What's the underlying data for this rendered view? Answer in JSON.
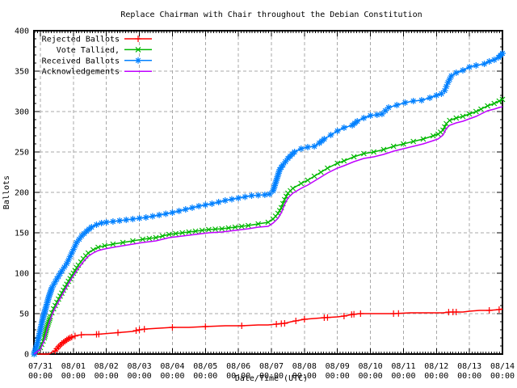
{
  "chart_data": {
    "type": "line",
    "title": "Replace Chairman with Chair throughout the Debian Constitution",
    "xlabel": "Date/Time (UTC)",
    "ylabel": "Ballots",
    "ylim": [
      0,
      400
    ],
    "ytick_step": 50,
    "y_minor_step": 10,
    "x_minor_per_day": 12,
    "grid": true,
    "legend_position": "top-left",
    "background_color": "#ffffff",
    "grid_color": "#a8a8a8",
    "axis_color": "#000000",
    "x_unit": "days since 07/31 00:00 UTC",
    "x_ticks": [
      {
        "date": "07/31",
        "time": "00:00"
      },
      {
        "date": "08/01",
        "time": "00:00"
      },
      {
        "date": "08/02",
        "time": "00:00"
      },
      {
        "date": "08/03",
        "time": "00:00"
      },
      {
        "date": "08/04",
        "time": "00:00"
      },
      {
        "date": "08/05",
        "time": "00:00"
      },
      {
        "date": "08/06",
        "time": "00:00"
      },
      {
        "date": "08/07",
        "time": "00:00"
      },
      {
        "date": "08/08",
        "time": "00:00"
      },
      {
        "date": "08/09",
        "time": "00:00"
      },
      {
        "date": "08/10",
        "time": "00:00"
      },
      {
        "date": "08/11",
        "time": "00:00"
      },
      {
        "date": "08/12",
        "time": "00:00"
      },
      {
        "date": "08/13",
        "time": "00:00"
      },
      {
        "date": "08/14",
        "time": "00:00"
      }
    ],
    "series": [
      {
        "name": "Rejected Ballots",
        "color": "#ff0000",
        "marker": "plus",
        "points": [
          [
            -0.19,
            0
          ],
          [
            0.25,
            0
          ],
          [
            0.45,
            4
          ],
          [
            0.55,
            9
          ],
          [
            0.65,
            13
          ],
          [
            0.75,
            16
          ],
          [
            0.85,
            19
          ],
          [
            0.95,
            21
          ],
          [
            1.1,
            23
          ],
          [
            1.3,
            24
          ],
          [
            1.6,
            24
          ],
          [
            1.9,
            25
          ],
          [
            2.2,
            26
          ],
          [
            2.5,
            27
          ],
          [
            2.8,
            28
          ],
          [
            3.0,
            30
          ],
          [
            3.2,
            31
          ],
          [
            3.6,
            32
          ],
          [
            4.0,
            33
          ],
          [
            4.5,
            33
          ],
          [
            5.0,
            34
          ],
          [
            5.6,
            35
          ],
          [
            6.1,
            35
          ],
          [
            6.6,
            36
          ],
          [
            6.9,
            36
          ],
          [
            7.15,
            37
          ],
          [
            7.4,
            38
          ],
          [
            7.6,
            40
          ],
          [
            8.0,
            43
          ],
          [
            8.3,
            44
          ],
          [
            8.6,
            45
          ],
          [
            9.0,
            46
          ],
          [
            9.2,
            47
          ],
          [
            9.45,
            49
          ],
          [
            9.7,
            50
          ],
          [
            10.2,
            50
          ],
          [
            10.7,
            50
          ],
          [
            11.2,
            51
          ],
          [
            11.7,
            51
          ],
          [
            12.2,
            51
          ],
          [
            12.4,
            52
          ],
          [
            12.8,
            52
          ],
          [
            13.0,
            53
          ],
          [
            13.3,
            54
          ],
          [
            13.6,
            54
          ],
          [
            13.9,
            55
          ],
          [
            14.0,
            56
          ]
        ],
        "marker_days": [
          0.45,
          0.5,
          0.55,
          0.6,
          0.65,
          0.7,
          0.75,
          0.8,
          0.85,
          0.9,
          0.95,
          1.05,
          1.24,
          1.7,
          1.77,
          2.35,
          2.9,
          3.0,
          3.15,
          4.0,
          5.0,
          6.1,
          7.15,
          7.3,
          7.4,
          7.74,
          8.0,
          8.6,
          8.7,
          9.2,
          9.43,
          9.5,
          9.7,
          10.7,
          10.85,
          12.37,
          12.5,
          12.6,
          13.6,
          13.9
        ]
      },
      {
        "name": "Vote Tallied,",
        "color": "#00b800",
        "marker": "cross",
        "points": [
          [
            -0.19,
            0
          ],
          [
            0.0,
            8
          ],
          [
            0.12,
            20
          ],
          [
            0.2,
            33
          ],
          [
            0.3,
            46
          ],
          [
            0.4,
            56
          ],
          [
            0.55,
            68
          ],
          [
            0.7,
            79
          ],
          [
            0.85,
            90
          ],
          [
            1.0,
            100
          ],
          [
            1.15,
            110
          ],
          [
            1.3,
            118
          ],
          [
            1.45,
            125
          ],
          [
            1.6,
            129
          ],
          [
            1.75,
            132
          ],
          [
            1.95,
            134
          ],
          [
            2.2,
            136
          ],
          [
            2.5,
            138
          ],
          [
            2.8,
            140
          ],
          [
            3.1,
            142
          ],
          [
            3.5,
            144
          ],
          [
            3.9,
            148
          ],
          [
            4.3,
            150
          ],
          [
            4.7,
            152
          ],
          [
            5.1,
            154
          ],
          [
            5.5,
            155
          ],
          [
            5.9,
            157
          ],
          [
            6.3,
            159
          ],
          [
            6.6,
            161
          ],
          [
            6.9,
            163
          ],
          [
            7.05,
            167
          ],
          [
            7.2,
            174
          ],
          [
            7.3,
            181
          ],
          [
            7.4,
            191
          ],
          [
            7.5,
            199
          ],
          [
            7.65,
            205
          ],
          [
            7.9,
            211
          ],
          [
            8.1,
            215
          ],
          [
            8.3,
            220
          ],
          [
            8.5,
            225
          ],
          [
            8.7,
            230
          ],
          [
            9.0,
            236
          ],
          [
            9.2,
            239
          ],
          [
            9.5,
            244
          ],
          [
            9.8,
            248
          ],
          [
            10.1,
            250
          ],
          [
            10.4,
            253
          ],
          [
            10.7,
            257
          ],
          [
            11.0,
            260
          ],
          [
            11.3,
            263
          ],
          [
            11.6,
            266
          ],
          [
            11.9,
            270
          ],
          [
            12.05,
            272
          ],
          [
            12.2,
            277
          ],
          [
            12.3,
            285
          ],
          [
            12.4,
            289
          ],
          [
            12.6,
            292
          ],
          [
            12.8,
            294
          ],
          [
            13.0,
            297
          ],
          [
            13.2,
            300
          ],
          [
            13.35,
            303
          ],
          [
            13.55,
            307
          ],
          [
            13.75,
            310
          ],
          [
            13.9,
            313
          ],
          [
            14.0,
            315
          ]
        ]
      },
      {
        "name": "Received Ballots",
        "color": "#0080ff",
        "marker": "star",
        "points": [
          [
            -0.19,
            0
          ],
          [
            -0.1,
            12
          ],
          [
            0.0,
            30
          ],
          [
            0.08,
            45
          ],
          [
            0.15,
            55
          ],
          [
            0.25,
            70
          ],
          [
            0.35,
            82
          ],
          [
            0.5,
            93
          ],
          [
            0.65,
            103
          ],
          [
            0.8,
            112
          ],
          [
            0.95,
            125
          ],
          [
            1.1,
            138
          ],
          [
            1.25,
            146
          ],
          [
            1.4,
            152
          ],
          [
            1.55,
            157
          ],
          [
            1.7,
            160
          ],
          [
            1.85,
            162
          ],
          [
            2.0,
            163
          ],
          [
            2.4,
            165
          ],
          [
            2.8,
            167
          ],
          [
            3.2,
            169
          ],
          [
            3.6,
            172
          ],
          [
            4.0,
            175
          ],
          [
            4.4,
            179
          ],
          [
            4.8,
            183
          ],
          [
            5.2,
            186
          ],
          [
            5.6,
            190
          ],
          [
            6.0,
            193
          ],
          [
            6.4,
            196
          ],
          [
            6.8,
            197
          ],
          [
            6.95,
            198
          ],
          [
            7.05,
            202
          ],
          [
            7.15,
            215
          ],
          [
            7.25,
            228
          ],
          [
            7.35,
            234
          ],
          [
            7.5,
            242
          ],
          [
            7.7,
            250
          ],
          [
            7.9,
            254
          ],
          [
            8.1,
            256
          ],
          [
            8.3,
            257
          ],
          [
            8.45,
            261
          ],
          [
            8.6,
            266
          ],
          [
            8.8,
            271
          ],
          [
            9.0,
            276
          ],
          [
            9.2,
            280
          ],
          [
            9.45,
            283
          ],
          [
            9.6,
            288
          ],
          [
            9.8,
            292
          ],
          [
            10.0,
            295
          ],
          [
            10.2,
            296
          ],
          [
            10.35,
            297
          ],
          [
            10.45,
            301
          ],
          [
            10.55,
            305
          ],
          [
            10.8,
            308
          ],
          [
            11.05,
            311
          ],
          [
            11.3,
            313
          ],
          [
            11.55,
            314
          ],
          [
            11.8,
            317
          ],
          [
            12.0,
            320
          ],
          [
            12.15,
            322
          ],
          [
            12.25,
            326
          ],
          [
            12.35,
            336
          ],
          [
            12.45,
            344
          ],
          [
            12.6,
            348
          ],
          [
            12.8,
            351
          ],
          [
            13.0,
            355
          ],
          [
            13.2,
            357
          ],
          [
            13.45,
            359
          ],
          [
            13.6,
            362
          ],
          [
            13.75,
            364
          ],
          [
            13.88,
            367
          ],
          [
            14.0,
            372
          ]
        ]
      },
      {
        "name": "Acknowledgements",
        "color": "#bf00ff",
        "marker": "none",
        "points": [
          [
            -0.19,
            0
          ],
          [
            0.0,
            6
          ],
          [
            0.12,
            17
          ],
          [
            0.2,
            30
          ],
          [
            0.3,
            43
          ],
          [
            0.4,
            53
          ],
          [
            0.55,
            65
          ],
          [
            0.7,
            76
          ],
          [
            0.85,
            87
          ],
          [
            1.0,
            97
          ],
          [
            1.15,
            106
          ],
          [
            1.3,
            114
          ],
          [
            1.45,
            121
          ],
          [
            1.6,
            125
          ],
          [
            1.75,
            128
          ],
          [
            1.95,
            130
          ],
          [
            2.2,
            132
          ],
          [
            2.5,
            134
          ],
          [
            2.8,
            136
          ],
          [
            3.1,
            138
          ],
          [
            3.5,
            140
          ],
          [
            3.9,
            144
          ],
          [
            4.3,
            146
          ],
          [
            4.7,
            148
          ],
          [
            5.1,
            150
          ],
          [
            5.5,
            151
          ],
          [
            5.9,
            153
          ],
          [
            6.3,
            155
          ],
          [
            6.6,
            157
          ],
          [
            6.9,
            158
          ],
          [
            7.05,
            162
          ],
          [
            7.2,
            168
          ],
          [
            7.3,
            175
          ],
          [
            7.4,
            185
          ],
          [
            7.5,
            193
          ],
          [
            7.65,
            199
          ],
          [
            7.9,
            205
          ],
          [
            8.1,
            209
          ],
          [
            8.3,
            214
          ],
          [
            8.5,
            219
          ],
          [
            8.7,
            224
          ],
          [
            9.0,
            230
          ],
          [
            9.2,
            233
          ],
          [
            9.5,
            238
          ],
          [
            9.8,
            242
          ],
          [
            10.1,
            244
          ],
          [
            10.4,
            247
          ],
          [
            10.7,
            251
          ],
          [
            11.0,
            254
          ],
          [
            11.3,
            257
          ],
          [
            11.6,
            260
          ],
          [
            11.9,
            264
          ],
          [
            12.05,
            266
          ],
          [
            12.2,
            271
          ],
          [
            12.3,
            279
          ],
          [
            12.4,
            283
          ],
          [
            12.6,
            286
          ],
          [
            12.8,
            288
          ],
          [
            13.0,
            291
          ],
          [
            13.2,
            294
          ],
          [
            13.35,
            297
          ],
          [
            13.55,
            301
          ],
          [
            13.75,
            303
          ],
          [
            13.9,
            305
          ],
          [
            14.0,
            306
          ]
        ]
      }
    ]
  }
}
